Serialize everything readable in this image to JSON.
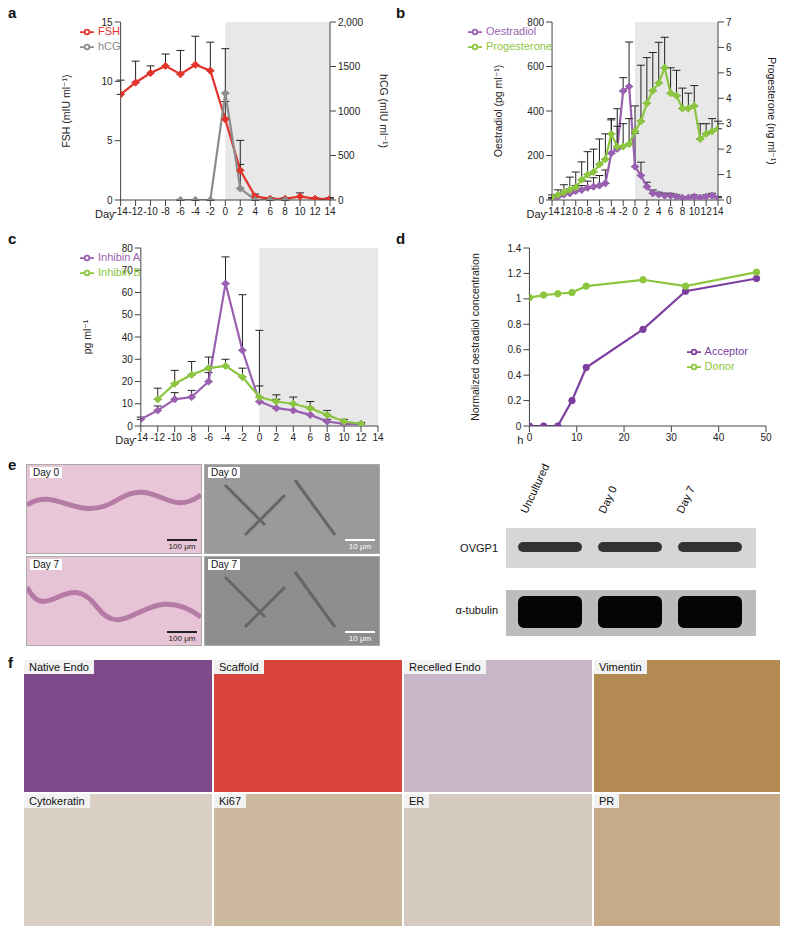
{
  "chart_data": [
    {
      "panel": "a",
      "type": "line",
      "xlabel": "Day",
      "ylabel": "FSH (mIU ml⁻¹)",
      "y2label": "hCG (mIU ml⁻¹)",
      "x": [
        -14,
        -12,
        -10,
        -8,
        -6,
        -4,
        -2,
        0,
        2,
        4,
        6,
        8,
        10,
        12,
        14
      ],
      "xlim": [
        -14,
        14
      ],
      "xticks": [
        -14,
        -12,
        -10,
        -8,
        -6,
        -4,
        -2,
        0,
        2,
        4,
        6,
        8,
        10,
        12,
        14
      ],
      "ylim": [
        0,
        15
      ],
      "yticks": [
        0,
        5,
        10,
        15
      ],
      "y2lim": [
        0,
        2000
      ],
      "y2ticks": [
        0,
        500,
        1000,
        1500,
        {
          "value": 2000,
          "label": "2,000"
        }
      ],
      "shaded_x": [
        0,
        14
      ],
      "grid": false,
      "legend": "upper left",
      "series": [
        {
          "name": "FSH",
          "color": "#e2342c",
          "marker": "diamond",
          "values": [
            8.9,
            9.9,
            10.7,
            11.3,
            10.6,
            11.4,
            10.9,
            6.8,
            2.5,
            0.3,
            0.1,
            0.1,
            0.3,
            0.1,
            0.1
          ],
          "errors": [
            1.2,
            1.8,
            0.6,
            1.0,
            2.0,
            2.4,
            2.4,
            1.5,
            0.5,
            0.2,
            0.1,
            0.1,
            0.3,
            0.1,
            0.1
          ]
        },
        {
          "name": "hCG",
          "color": "#8c8c8c",
          "marker": "diamond",
          "axis": "y2",
          "values": [
            null,
            null,
            null,
            null,
            0,
            0,
            0,
            1200,
            130,
            0,
            0,
            0,
            null,
            null,
            null
          ],
          "errors": [
            null,
            null,
            null,
            null,
            0,
            0,
            0,
            500,
            540,
            0,
            0,
            0,
            null,
            null,
            null
          ]
        }
      ]
    },
    {
      "panel": "b",
      "type": "line",
      "xlabel": "Day",
      "ylabel": "Oestradiol (pg ml⁻¹)",
      "y2label": "Progesterone (ng ml⁻¹)",
      "x": [
        -14,
        -13,
        -12,
        -11,
        -10,
        -9,
        -8,
        -7,
        -6,
        -5,
        -4,
        -3,
        -2,
        -1,
        0,
        1,
        2,
        3,
        4,
        5,
        6,
        7,
        8,
        9,
        10,
        11,
        12,
        13,
        14
      ],
      "xlim": [
        -14,
        14
      ],
      "xticks": [
        -14,
        -12,
        -10,
        -8,
        -6,
        -4,
        -2,
        0,
        2,
        4,
        6,
        8,
        10,
        12,
        14
      ],
      "ylim": [
        0,
        800
      ],
      "yticks": [
        0,
        200,
        400,
        600,
        800
      ],
      "y2lim": [
        0,
        7
      ],
      "y2ticks": [
        0,
        1,
        2,
        3,
        4,
        5,
        6,
        7
      ],
      "shaded_x": [
        0,
        14
      ],
      "grid": false,
      "legend": "upper left",
      "series": [
        {
          "name": "Oestradiol",
          "color": "#9a5fb0",
          "marker": "diamond",
          "values": [
            5,
            15,
            25,
            30,
            40,
            45,
            55,
            60,
            65,
            75,
            210,
            230,
            490,
            510,
            150,
            110,
            60,
            30,
            25,
            20,
            20,
            15,
            10,
            10,
            15,
            10,
            15,
            20,
            10
          ],
          "errors": [
            5,
            10,
            15,
            20,
            25,
            20,
            30,
            40,
            45,
            60,
            150,
            180,
            60,
            200,
            150,
            60,
            20,
            15,
            10,
            10,
            10,
            8,
            5,
            5,
            8,
            5,
            8,
            10,
            5
          ]
        },
        {
          "name": "Progesterone",
          "color": "#8cc63e",
          "marker": "diamond",
          "axis": "y2",
          "values": [
            0.1,
            0.2,
            0.3,
            0.4,
            0.5,
            0.8,
            1.0,
            1.1,
            1.4,
            1.6,
            2.6,
            2.1,
            2.1,
            2.2,
            2.7,
            3.1,
            3.8,
            4.3,
            4.6,
            5.2,
            4.2,
            4.1,
            3.6,
            3.6,
            3.7,
            2.4,
            2.6,
            2.7,
            2.8
          ],
          "errors": [
            0.1,
            0.2,
            0.3,
            0.5,
            0.6,
            0.7,
            0.9,
            0.9,
            1.0,
            1.0,
            0.6,
            0.8,
            0.9,
            1.0,
            1.0,
            2.2,
            1.8,
            1.5,
            1.6,
            1.2,
            1.0,
            1.0,
            0.8,
            0.6,
            0.8,
            0.6,
            0.4,
            0.5,
            0.3
          ]
        }
      ]
    },
    {
      "panel": "c",
      "type": "line",
      "xlabel": "Day",
      "ylabel": "pg ml⁻¹",
      "x": [
        -14,
        -12,
        -10,
        -8,
        -6,
        -4,
        -2,
        0,
        2,
        4,
        6,
        8,
        10,
        12
      ],
      "xlim": [
        -14,
        14
      ],
      "xticks": [
        -14,
        -12,
        -10,
        -8,
        -6,
        -4,
        -2,
        0,
        2,
        4,
        6,
        8,
        10,
        12,
        14
      ],
      "ylim": [
        0,
        80
      ],
      "yticks": [
        0,
        10,
        20,
        30,
        40,
        50,
        60,
        70,
        80
      ],
      "shaded_x": [
        0,
        14
      ],
      "grid": false,
      "legend": "upper left",
      "series": [
        {
          "name": "Inhibin A",
          "color": "#9a5fb0",
          "marker": "diamond",
          "values": [
            3,
            7,
            12,
            13,
            20,
            64,
            34,
            11,
            8,
            7,
            5,
            2,
            1,
            1
          ],
          "errors": [
            1,
            2,
            3,
            3,
            4,
            12,
            25,
            32,
            4,
            3,
            3,
            1,
            1,
            0.5
          ]
        },
        {
          "name": "Inhibin B",
          "color": "#8cc63e",
          "marker": "diamond",
          "values": [
            null,
            12,
            19,
            23,
            26,
            27,
            22,
            13,
            11,
            10,
            8,
            5,
            2,
            1
          ],
          "errors": [
            null,
            5,
            6,
            6,
            5,
            3,
            4,
            5,
            3,
            3,
            3,
            2,
            1,
            0.5
          ]
        }
      ]
    },
    {
      "panel": "d",
      "type": "line",
      "xlabel": "h",
      "ylabel": "Normalized oestradiol concentration",
      "x": [
        0,
        3,
        6,
        9,
        12,
        24,
        33,
        48
      ],
      "xlim": [
        0,
        50
      ],
      "xticks": [
        0,
        10,
        20,
        30,
        40,
        50
      ],
      "ylim": [
        0,
        1.4
      ],
      "yticks": [
        0,
        0.2,
        0.4,
        0.6,
        0.8,
        1,
        1.2,
        1.4
      ],
      "grid": false,
      "legend": "right",
      "series": [
        {
          "name": "Acceptor",
          "color": "#7d3f9f",
          "marker": "circle",
          "values": [
            0,
            0,
            0,
            0.2,
            0.46,
            0.76,
            1.06,
            1.16
          ]
        },
        {
          "name": "Donor",
          "color": "#8cc63e",
          "marker": "circle",
          "values": [
            1.01,
            1.03,
            1.04,
            1.05,
            1.1,
            1.15,
            1.1,
            1.21
          ]
        }
      ]
    }
  ],
  "panels": {
    "e": {
      "panel": "e",
      "images": [
        {
          "label": "Day 0",
          "scale_bar": "100 μm"
        },
        {
          "label": "Day 0",
          "scale_bar": "10 μm"
        },
        {
          "label": "Day 7",
          "scale_bar": "100 μm"
        },
        {
          "label": "Day 7",
          "scale_bar": "10 μm"
        }
      ],
      "blot": {
        "lanes": [
          "Uncultured",
          "Day 0",
          "Day 7"
        ],
        "bands": [
          "OVGP1",
          "α-tubulin"
        ]
      }
    },
    "f": {
      "panel": "f",
      "images": [
        "Native Endo",
        "Scaffold",
        "Recelled Endo",
        "Vimentin",
        "Cytokeratin",
        "Ki67",
        "ER",
        "PR"
      ]
    }
  }
}
